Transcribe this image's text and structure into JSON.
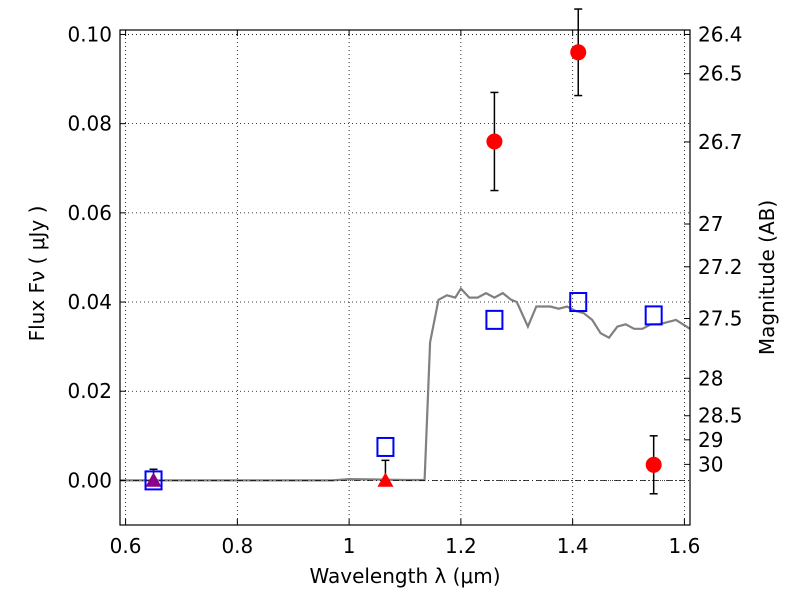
{
  "chart_data": {
    "type": "scatter",
    "xlabel": "Wavelength  λ (μm)",
    "ylabel": "Flux  Fν  ( μJy )",
    "ylabel_right": "Magnitude (AB)",
    "xlim": [
      0.59,
      1.61
    ],
    "ylim": [
      -0.01,
      0.101
    ],
    "grid": true,
    "x_ticks": [
      0.6,
      0.8,
      1.0,
      1.2,
      1.4,
      1.6
    ],
    "x_tick_labels": [
      "0.6",
      "0.8",
      "1",
      "1.2",
      "1.4",
      "1.6"
    ],
    "y_ticks": [
      0.0,
      0.02,
      0.04,
      0.06,
      0.08,
      0.1
    ],
    "y_tick_labels": [
      "0.00",
      "0.02",
      "0.04",
      "0.06",
      "0.08",
      "0.10"
    ],
    "right_ticks": [
      {
        "label": "26.4",
        "flux": 0.1
      },
      {
        "label": "26.5",
        "flux": 0.0912
      },
      {
        "label": "26.7",
        "flux": 0.0759
      },
      {
        "label": "27",
        "flux": 0.0575
      },
      {
        "label": "27.2",
        "flux": 0.0479
      },
      {
        "label": "27.5",
        "flux": 0.0363
      },
      {
        "label": "28",
        "flux": 0.0229
      },
      {
        "label": "28.5",
        "flux": 0.0145
      },
      {
        "label": "29",
        "flux": 0.0091
      },
      {
        "label": "30",
        "flux": 0.0036
      }
    ],
    "series": [
      {
        "kind": "points",
        "marker": "circle",
        "color": "#ff0000",
        "points": [
          {
            "x": 1.26,
            "y": 0.076,
            "yerr": 0.011
          },
          {
            "x": 1.41,
            "y": 0.096,
            "yerr": 0.0097
          },
          {
            "x": 1.545,
            "y": 0.0035,
            "yerr": 0.0065
          }
        ]
      },
      {
        "kind": "points",
        "marker": "triangle",
        "color": "#ff0000",
        "points": [
          {
            "x": 1.065,
            "y": 0.0,
            "yerr_up": 0.0045,
            "yerr_down": 0.0
          }
        ]
      },
      {
        "kind": "points",
        "marker": "triangle",
        "color": "#8b008b",
        "points": [
          {
            "x": 0.65,
            "y": 0.0,
            "yerr_up": 0.0025,
            "yerr_down": 0.0
          }
        ]
      },
      {
        "kind": "points",
        "marker": "open-square",
        "color": "#0000ff",
        "points": [
          {
            "x": 0.65,
            "y": 0.0
          },
          {
            "x": 1.065,
            "y": 0.0075
          },
          {
            "x": 1.26,
            "y": 0.036
          },
          {
            "x": 1.41,
            "y": 0.04
          },
          {
            "x": 1.545,
            "y": 0.037
          }
        ]
      },
      {
        "kind": "line",
        "color": "#808080",
        "x": [
          0.59,
          0.97,
          1.0,
          1.05,
          1.1,
          1.135,
          1.145,
          1.16,
          1.175,
          1.19,
          1.2,
          1.215,
          1.23,
          1.245,
          1.26,
          1.275,
          1.29,
          1.3,
          1.32,
          1.335,
          1.345,
          1.36,
          1.375,
          1.39,
          1.405,
          1.42,
          1.435,
          1.45,
          1.465,
          1.48,
          1.495,
          1.51,
          1.525,
          1.54,
          1.555,
          1.57,
          1.585,
          1.61
        ],
        "y": [
          0.0,
          0.0,
          0.0003,
          0.0002,
          0.0001,
          0.0001,
          0.031,
          0.0405,
          0.0415,
          0.041,
          0.043,
          0.041,
          0.041,
          0.042,
          0.041,
          0.042,
          0.0405,
          0.04,
          0.0345,
          0.039,
          0.039,
          0.039,
          0.0385,
          0.039,
          0.038,
          0.0375,
          0.036,
          0.033,
          0.032,
          0.0345,
          0.035,
          0.034,
          0.034,
          0.035,
          0.035,
          0.0355,
          0.036,
          0.034
        ]
      },
      {
        "kind": "dashdot",
        "color": "#000000",
        "x": [
          0.59,
          1.61
        ],
        "y": [
          0.0,
          0.0
        ]
      }
    ]
  }
}
